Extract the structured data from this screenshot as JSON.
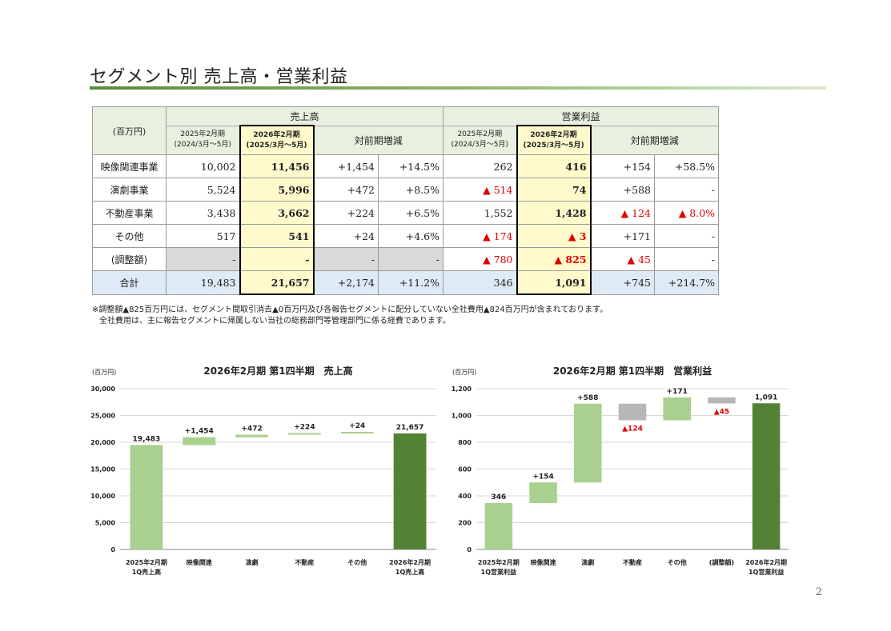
{
  "page": {
    "title": "セグメント別 売上高・営業利益",
    "page_number": "2"
  },
  "table": {
    "unit": "(百万円)",
    "group_sales": "売上高",
    "group_op": "営業利益",
    "prev_period": "2025年2月期",
    "prev_range": "(2024/3月～5月)",
    "cur_period": "2026年2月期",
    "cur_range": "(2025/3月～5月)",
    "change": "対前期増減",
    "rows": [
      {
        "label": "映像関連事業",
        "s_prev": "10,002",
        "s_cur": "11,456",
        "s_diff": "+1,454",
        "s_pct": "+14.5%",
        "o_prev": "262",
        "o_cur": "416",
        "o_diff": "+154",
        "o_pct": "+58.5%"
      },
      {
        "label": "演劇事業",
        "s_prev": "5,524",
        "s_cur": "5,996",
        "s_diff": "+472",
        "s_pct": "+8.5%",
        "o_prev": "▲ 514",
        "o_cur": "74",
        "o_diff": "+588",
        "o_pct": "-"
      },
      {
        "label": "不動産事業",
        "s_prev": "3,438",
        "s_cur": "3,662",
        "s_diff": "+224",
        "s_pct": "+6.5%",
        "o_prev": "1,552",
        "o_cur": "1,428",
        "o_diff": "▲ 124",
        "o_pct": "▲ 8.0%"
      },
      {
        "label": "その他",
        "s_prev": "517",
        "s_cur": "541",
        "s_diff": "+24",
        "s_pct": "+4.6%",
        "o_prev": "▲ 174",
        "o_cur": "▲ 3",
        "o_diff": "+171",
        "o_pct": "-"
      },
      {
        "label": "(調整額)",
        "s_prev": "-",
        "s_cur": "-",
        "s_diff": "-",
        "s_pct": "-",
        "o_prev": "▲ 780",
        "o_cur": "▲ 825",
        "o_diff": "▲ 45",
        "o_pct": "-"
      },
      {
        "label": "合計",
        "s_prev": "19,483",
        "s_cur": "21,657",
        "s_diff": "+2,174",
        "s_pct": "+11.2%",
        "o_prev": "346",
        "o_cur": "1,091",
        "o_diff": "+745",
        "o_pct": "+214.7%"
      }
    ]
  },
  "notes": {
    "line1": "※調整額▲825百万円には、セグメント間取引消去▲0百万円及び各報告セグメントに配分していない全社費用▲824百万円が含まれております。",
    "line2": "全社費用は、主に報告セグメントに帰属しない当社の総務部門等管理部門に係る経費であります。"
  },
  "colors": {
    "light_green": "#a9d08e",
    "dark_green": "#548235",
    "gray": "#b7b7b7",
    "red": "#e00000",
    "highlight": "#fff9cc"
  },
  "chart_data": [
    {
      "type": "waterfall",
      "title": "2026年2月期 第1四半期　売上高",
      "unit": "(百万円)",
      "ylim": [
        0,
        30000
      ],
      "yticks": [
        "0",
        "5,000",
        "10,000",
        "15,000",
        "20,000",
        "25,000",
        "30,000"
      ],
      "categories": [
        "2025年2月期\n1Q売上高",
        "映像関連",
        "演劇",
        "不動産",
        "その他",
        "2026年2月期\n1Q売上高"
      ],
      "values": [
        19483,
        1454,
        472,
        224,
        24,
        21657
      ],
      "kinds": [
        "total",
        "up",
        "up",
        "up",
        "up",
        "total"
      ],
      "labels": [
        "19,483",
        "+1,454",
        "+472",
        "+224",
        "+24",
        "21,657"
      ]
    },
    {
      "type": "waterfall",
      "title": "2026年2月期 第1四半期　営業利益",
      "unit": "(百万円)",
      "ylim": [
        0,
        1200
      ],
      "yticks": [
        "0",
        "200",
        "400",
        "600",
        "800",
        "1,000",
        "1,200"
      ],
      "categories": [
        "2025年2月期\n1Q営業利益",
        "映像関連",
        "演劇",
        "不動産",
        "その他",
        "(調整額)",
        "2026年2月期\n1Q営業利益"
      ],
      "values": [
        346,
        154,
        588,
        -124,
        171,
        -45,
        1091
      ],
      "kinds": [
        "total",
        "up",
        "up",
        "down",
        "up",
        "down",
        "total"
      ],
      "labels": [
        "346",
        "+154",
        "+588",
        "▲124",
        "+171",
        "▲45",
        "1,091"
      ]
    }
  ]
}
